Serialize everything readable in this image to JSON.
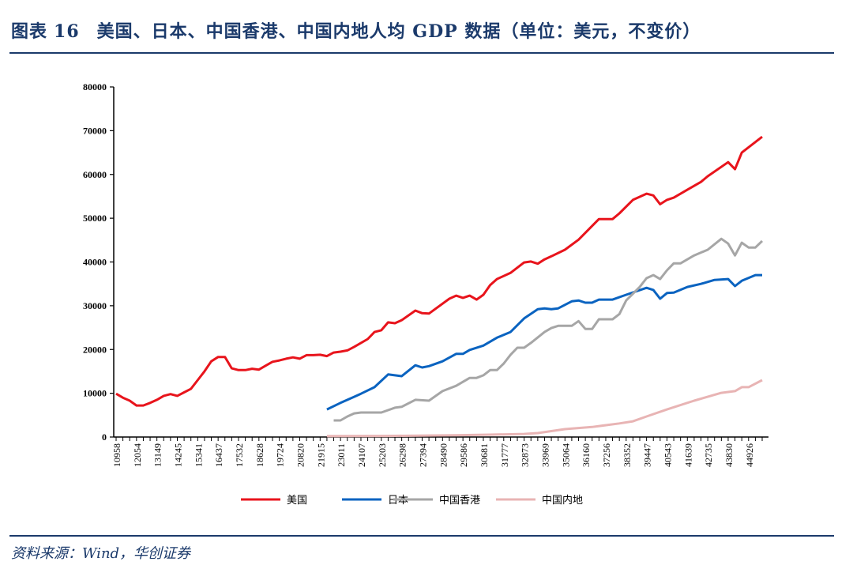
{
  "header": {
    "label": "图表",
    "number": "16",
    "title": "美国、日本、中国香港、中国内地人均 GDP 数据（单位：美元，不变价）"
  },
  "source": "资料来源：Wind，华创证券",
  "chart_data": {
    "type": "line",
    "title": "美国、日本、中国香港、中国内地人均 GDP 数据（单位：美元，不变价）",
    "xlabel": "",
    "ylabel": "",
    "ylim": [
      0,
      80000
    ],
    "yticks": [
      "0",
      "10000",
      "20000",
      "30000",
      "40000",
      "50000",
      "60000",
      "70000",
      "80000"
    ],
    "xlim": [
      1930,
      2025
    ],
    "xtick_labels": [
      "10958",
      "12054",
      "13149",
      "14245",
      "15341",
      "16437",
      "17532",
      "18628",
      "19724",
      "20820",
      "21915",
      "23011",
      "24107",
      "25203",
      "26298",
      "27394",
      "28490",
      "29586",
      "30681",
      "31777",
      "32873",
      "33969",
      "35064",
      "36160",
      "37256",
      "38352",
      "39447",
      "40543",
      "41639",
      "42735",
      "43830",
      "44926"
    ],
    "xtick_years_start": 1930,
    "xtick_year_step": 3,
    "grid": false,
    "legend_position": "bottom",
    "series": [
      {
        "name": "美国",
        "color": "#e8141c",
        "points": [
          [
            1930,
            9900
          ],
          [
            1931,
            9000
          ],
          [
            1932,
            8300
          ],
          [
            1933,
            7200
          ],
          [
            1934,
            7200
          ],
          [
            1935,
            7800
          ],
          [
            1936,
            8500
          ],
          [
            1937,
            9400
          ],
          [
            1938,
            9800
          ],
          [
            1939,
            9400
          ],
          [
            1940,
            10200
          ],
          [
            1941,
            11000
          ],
          [
            1942,
            13000
          ],
          [
            1943,
            15000
          ],
          [
            1944,
            17300
          ],
          [
            1945,
            18300
          ],
          [
            1946,
            18300
          ],
          [
            1947,
            15700
          ],
          [
            1948,
            15300
          ],
          [
            1949,
            15300
          ],
          [
            1950,
            15600
          ],
          [
            1951,
            15400
          ],
          [
            1952,
            16300
          ],
          [
            1953,
            17200
          ],
          [
            1954,
            17500
          ],
          [
            1955,
            17900
          ],
          [
            1956,
            18200
          ],
          [
            1957,
            17900
          ],
          [
            1958,
            18700
          ],
          [
            1959,
            18700
          ],
          [
            1960,
            18800
          ],
          [
            1961,
            18500
          ],
          [
            1962,
            19300
          ],
          [
            1963,
            19500
          ],
          [
            1964,
            19800
          ],
          [
            1965,
            20600
          ],
          [
            1967,
            22400
          ],
          [
            1968,
            24000
          ],
          [
            1969,
            24400
          ],
          [
            1970,
            26200
          ],
          [
            1971,
            26000
          ],
          [
            1972,
            26700
          ],
          [
            1974,
            28900
          ],
          [
            1975,
            28300
          ],
          [
            1976,
            28200
          ],
          [
            1979,
            31600
          ],
          [
            1980,
            32300
          ],
          [
            1981,
            31800
          ],
          [
            1982,
            32300
          ],
          [
            1983,
            31400
          ],
          [
            1984,
            32500
          ],
          [
            1985,
            34700
          ],
          [
            1986,
            36100
          ],
          [
            1988,
            37500
          ],
          [
            1990,
            39900
          ],
          [
            1991,
            40100
          ],
          [
            1992,
            39600
          ],
          [
            1993,
            40600
          ],
          [
            1994,
            41300
          ],
          [
            1996,
            42800
          ],
          [
            1998,
            45100
          ],
          [
            2001,
            49800
          ],
          [
            2003,
            49800
          ],
          [
            2004,
            51100
          ],
          [
            2006,
            54200
          ],
          [
            2008,
            55600
          ],
          [
            2009,
            55200
          ],
          [
            2010,
            53200
          ],
          [
            2011,
            54200
          ],
          [
            2012,
            54700
          ],
          [
            2014,
            56500
          ],
          [
            2016,
            58300
          ],
          [
            2017,
            59600
          ],
          [
            2020,
            62800
          ],
          [
            2021,
            61200
          ],
          [
            2022,
            65000
          ],
          [
            2025,
            68600
          ]
        ]
      },
      {
        "name": "日本",
        "color": "#0a63c0",
        "points": [
          [
            1961,
            6300
          ],
          [
            1963,
            7800
          ],
          [
            1965,
            9200
          ],
          [
            1966,
            9900
          ],
          [
            1968,
            11400
          ],
          [
            1970,
            14300
          ],
          [
            1972,
            13900
          ],
          [
            1974,
            16400
          ],
          [
            1975,
            15900
          ],
          [
            1976,
            16200
          ],
          [
            1978,
            17300
          ],
          [
            1980,
            19000
          ],
          [
            1981,
            19000
          ],
          [
            1982,
            19900
          ],
          [
            1984,
            20900
          ],
          [
            1986,
            22700
          ],
          [
            1988,
            24000
          ],
          [
            1990,
            27100
          ],
          [
            1992,
            29200
          ],
          [
            1993,
            29400
          ],
          [
            1994,
            29200
          ],
          [
            1995,
            29400
          ],
          [
            1997,
            31000
          ],
          [
            1998,
            31200
          ],
          [
            1999,
            30700
          ],
          [
            2000,
            30700
          ],
          [
            2001,
            31400
          ],
          [
            2003,
            31400
          ],
          [
            2005,
            32500
          ],
          [
            2008,
            34100
          ],
          [
            2009,
            33600
          ],
          [
            2010,
            31600
          ],
          [
            2011,
            32900
          ],
          [
            2012,
            33000
          ],
          [
            2014,
            34300
          ],
          [
            2016,
            35000
          ],
          [
            2018,
            35900
          ],
          [
            2020,
            36100
          ],
          [
            2021,
            34500
          ],
          [
            2022,
            35700
          ],
          [
            2024,
            37000
          ],
          [
            2025,
            37000
          ]
        ]
      },
      {
        "name": "中国香港",
        "color": "#a6a6a6",
        "points": [
          [
            1962,
            3800
          ],
          [
            1963,
            3800
          ],
          [
            1964,
            4700
          ],
          [
            1965,
            5400
          ],
          [
            1966,
            5600
          ],
          [
            1969,
            5600
          ],
          [
            1971,
            6700
          ],
          [
            1972,
            6900
          ],
          [
            1974,
            8500
          ],
          [
            1976,
            8300
          ],
          [
            1978,
            10500
          ],
          [
            1980,
            11700
          ],
          [
            1982,
            13500
          ],
          [
            1983,
            13500
          ],
          [
            1984,
            14100
          ],
          [
            1985,
            15300
          ],
          [
            1986,
            15300
          ],
          [
            1987,
            16800
          ],
          [
            1988,
            18800
          ],
          [
            1989,
            20400
          ],
          [
            1990,
            20400
          ],
          [
            1991,
            21500
          ],
          [
            1993,
            24000
          ],
          [
            1994,
            24900
          ],
          [
            1995,
            25400
          ],
          [
            1997,
            25400
          ],
          [
            1998,
            26500
          ],
          [
            1999,
            24700
          ],
          [
            2000,
            24700
          ],
          [
            2001,
            26900
          ],
          [
            2003,
            26900
          ],
          [
            2004,
            28100
          ],
          [
            2005,
            31200
          ],
          [
            2007,
            34300
          ],
          [
            2008,
            36300
          ],
          [
            2009,
            37000
          ],
          [
            2010,
            36100
          ],
          [
            2011,
            38100
          ],
          [
            2012,
            39700
          ],
          [
            2013,
            39700
          ],
          [
            2015,
            41500
          ],
          [
            2017,
            42800
          ],
          [
            2019,
            45300
          ],
          [
            2020,
            44200
          ],
          [
            2021,
            41500
          ],
          [
            2022,
            44400
          ],
          [
            2023,
            43300
          ],
          [
            2024,
            43300
          ],
          [
            2025,
            44800
          ]
        ]
      },
      {
        "name": "中国内地",
        "color": "#e8b4b4",
        "points": [
          [
            1961,
            200
          ],
          [
            1970,
            250
          ],
          [
            1980,
            400
          ],
          [
            1985,
            550
          ],
          [
            1990,
            700
          ],
          [
            1992,
            900
          ],
          [
            1996,
            1800
          ],
          [
            2000,
            2300
          ],
          [
            2004,
            3100
          ],
          [
            2006,
            3600
          ],
          [
            2008,
            4700
          ],
          [
            2011,
            6300
          ],
          [
            2015,
            8300
          ],
          [
            2019,
            10100
          ],
          [
            2021,
            10500
          ],
          [
            2022,
            11400
          ],
          [
            2023,
            11400
          ],
          [
            2025,
            13000
          ]
        ]
      }
    ]
  }
}
